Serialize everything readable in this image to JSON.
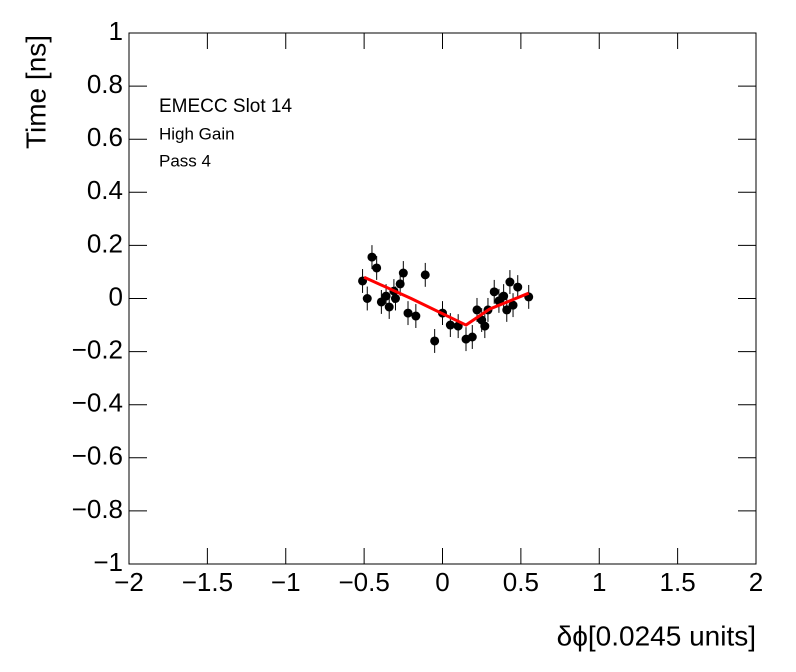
{
  "chart_data": {
    "type": "scatter",
    "xlabel": "δϕ[0.0245 units]",
    "ylabel": "Time [ns]",
    "annotations": [
      "EMECC Slot 14",
      "High Gain",
      "Pass 4"
    ],
    "xlim": [
      -2,
      2
    ],
    "ylim": [
      -1,
      1
    ],
    "xticks": [
      {
        "value": -2,
        "label": "−2"
      },
      {
        "value": -1.5,
        "label": "−1.5"
      },
      {
        "value": -1,
        "label": "−1"
      },
      {
        "value": -0.5,
        "label": "−0.5"
      },
      0,
      0.5,
      1,
      1.5,
      2
    ],
    "yticks": [
      {
        "value": -1,
        "label": "−1"
      },
      {
        "value": -0.8,
        "label": "−0.8"
      },
      {
        "value": -0.6,
        "label": "−0.6"
      },
      {
        "value": -0.4,
        "label": "−0.4"
      },
      {
        "value": -0.2,
        "label": "−0.2"
      },
      0,
      0.2,
      0.4,
      0.6,
      0.8,
      1
    ],
    "series": [
      {
        "color": "#000000",
        "x": [
          -0.51,
          -0.48,
          -0.45,
          -0.42,
          -0.39,
          -0.36,
          -0.34,
          -0.31,
          -0.3,
          -0.27,
          -0.25,
          -0.22,
          -0.17,
          -0.11,
          -0.05,
          0.0,
          0.05,
          0.1,
          0.15,
          0.19,
          0.22,
          0.25,
          0.27,
          0.29,
          0.33,
          0.36,
          0.39,
          0.41,
          0.43,
          0.45,
          0.48,
          0.55
        ],
        "y": [
          0.066,
          0.0,
          0.156,
          0.115,
          -0.013,
          0.009,
          -0.032,
          0.028,
          0.0,
          0.055,
          0.096,
          -0.055,
          -0.066,
          0.089,
          -0.16,
          -0.055,
          -0.1,
          -0.104,
          -0.153,
          -0.145,
          -0.043,
          -0.081,
          -0.104,
          -0.043,
          0.025,
          -0.009,
          0.009,
          -0.043,
          0.062,
          -0.025,
          0.043,
          0.006
        ],
        "errors": [
          0.045,
          0.045,
          0.045,
          0.045,
          0.045,
          0.045,
          0.045,
          0.045,
          0.045,
          0.045,
          0.045,
          0.045,
          0.045,
          0.045,
          0.045,
          0.045,
          0.045,
          0.045,
          0.045,
          0.045,
          0.045,
          0.045,
          0.045,
          0.045,
          0.045,
          0.045,
          0.045,
          0.045,
          0.045,
          0.045,
          0.045,
          0.045
        ]
      }
    ],
    "fit": {
      "color": "#ff0000",
      "x": [
        -0.5,
        -0.2,
        0.15,
        0.3,
        0.55
      ],
      "y": [
        0.08,
        0.0,
        -0.1,
        -0.04,
        0.02
      ]
    }
  }
}
